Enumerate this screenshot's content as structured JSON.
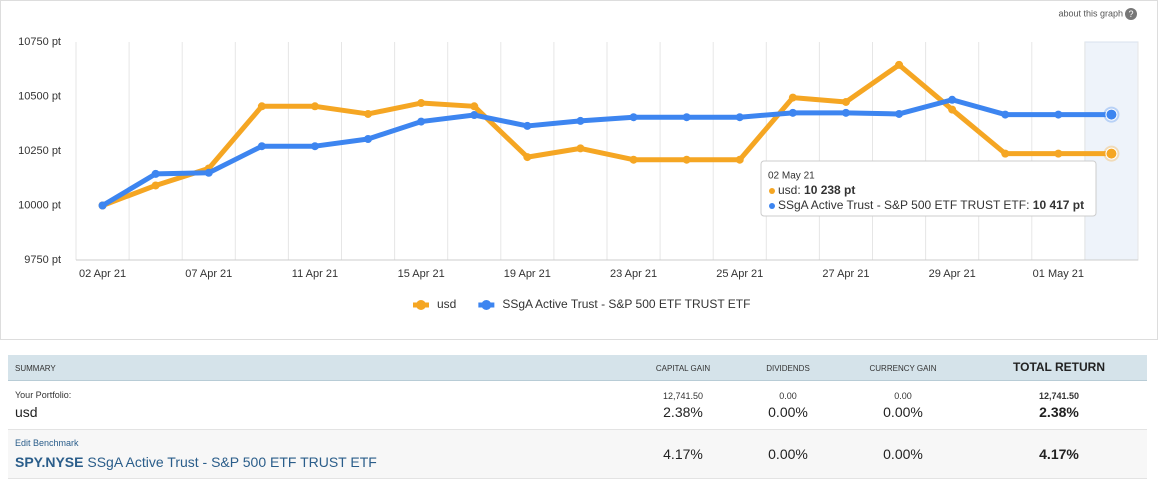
{
  "about_link": "about this graph",
  "chart_data": {
    "type": "line",
    "categories": [
      "02 Apr 21",
      null,
      "07 Apr 21",
      null,
      "11 Apr 21",
      null,
      "15 Apr 21",
      null,
      "19 Apr 21",
      null,
      "23 Apr 21",
      null,
      "25 Apr 21",
      null,
      "27 Apr 21",
      null,
      "29 Apr 21",
      null,
      "01 May 21",
      null
    ],
    "series": [
      {
        "name": "usd",
        "color": "#f5a623",
        "values": [
          10000,
          10092,
          10170,
          10455,
          10455,
          10420,
          10470,
          10455,
          10222,
          10262,
          10210,
          10210,
          10210,
          10495,
          10475,
          10645,
          10440,
          10238,
          10238,
          10238
        ]
      },
      {
        "name": "SSgA Active Trust - S&P 500 ETF TRUST ETF",
        "color": "#3d85f0",
        "values": [
          10000,
          10145,
          10150,
          10272,
          10272,
          10305,
          10385,
          10415,
          10365,
          10388,
          10405,
          10405,
          10405,
          10425,
          10425,
          10420,
          10485,
          10417,
          10417,
          10417
        ]
      }
    ],
    "ylim": [
      9750,
      10750
    ],
    "yticks": [
      {
        "value": 9750,
        "label": "9750 pt"
      },
      {
        "value": 10000,
        "label": "10000 pt"
      },
      {
        "value": 10250,
        "label": "10250 pt"
      },
      {
        "value": 10500,
        "label": "10500 pt"
      },
      {
        "value": 10750,
        "label": "10750 pt"
      }
    ],
    "grid": true,
    "legend": "bottom",
    "tooltip": {
      "title": "02 May 21",
      "rows": [
        {
          "name": "usd: ",
          "value": "10 238 pt"
        },
        {
          "name": "SSgA Active Trust - S&P 500 ETF TRUST ETF: ",
          "value": "10 417 pt"
        }
      ]
    }
  },
  "table": {
    "header": [
      "SUMMARY",
      "CAPITAL GAIN",
      "DIVIDENDS",
      "CURRENCY GAIN",
      "TOTAL RETURN"
    ],
    "rows": [
      {
        "label": "Your Portfolio:",
        "name": "usd",
        "cells": [
          {
            "top": "12,741.50",
            "bottom": "2.38%"
          },
          {
            "top": "0.00",
            "bottom": "0.00%"
          },
          {
            "top": "0.00",
            "bottom": "0.00%"
          },
          {
            "top": "12,741.50",
            "bottom": "2.38%"
          }
        ]
      },
      {
        "link": "Edit Benchmark",
        "ticker": "SPY.NYSE",
        "name": "SSgA Active Trust - S&P 500 ETF TRUST ETF",
        "cells": [
          {
            "bottom": "4.17%"
          },
          {
            "bottom": "0.00%"
          },
          {
            "bottom": "0.00%"
          },
          {
            "bottom": "4.17%"
          }
        ]
      }
    ]
  }
}
